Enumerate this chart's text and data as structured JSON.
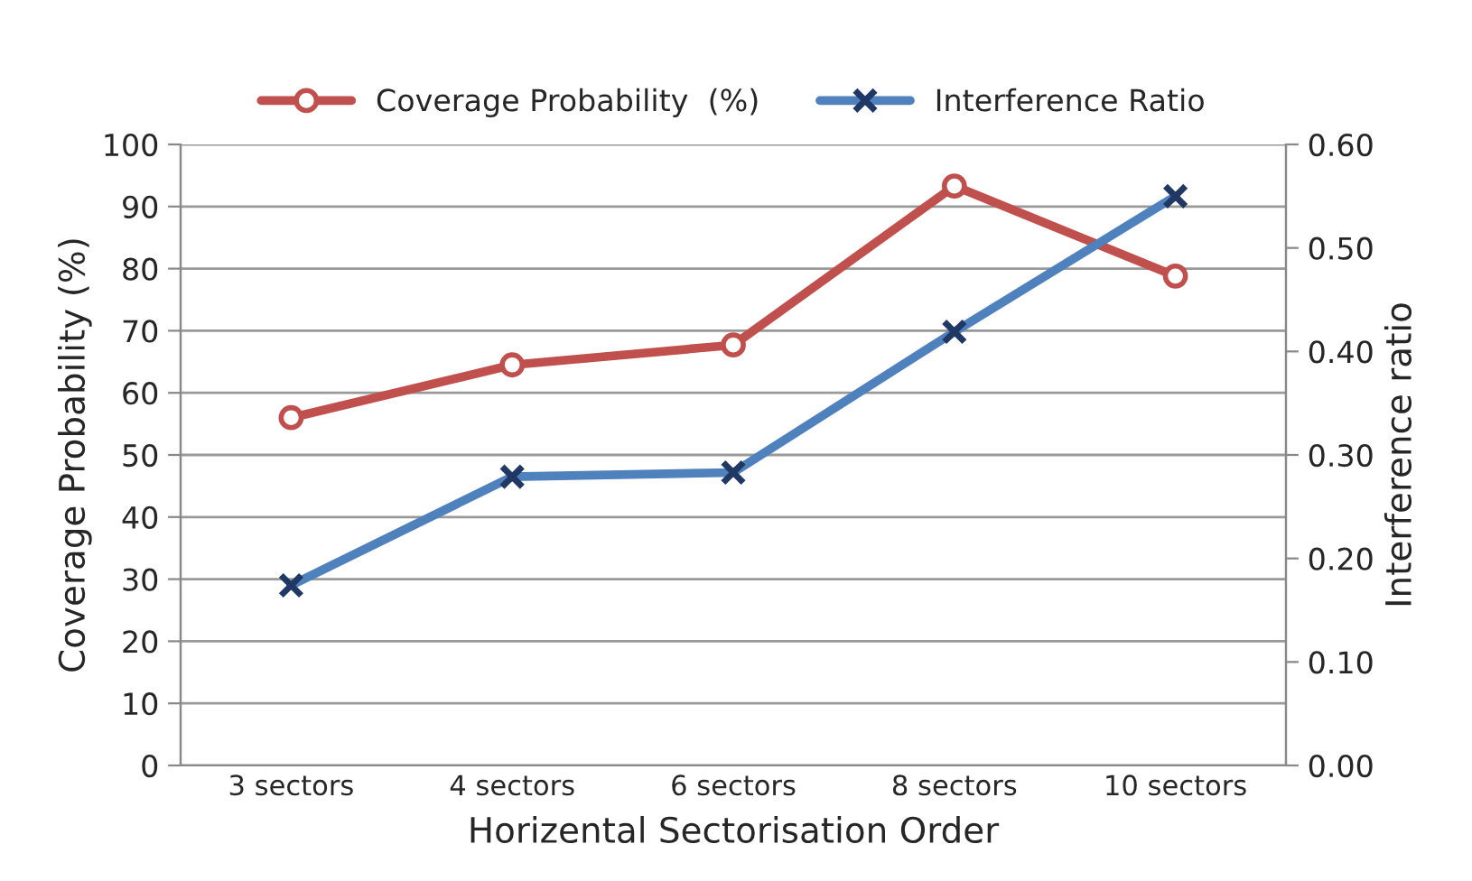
{
  "chart_data": {
    "type": "line",
    "xlabel": "Horizental Sectorisation Order",
    "ylabel": "Coverage Probability (%)",
    "y2label": "Interference ratio",
    "categories": [
      "3 sectors",
      "4 sectors",
      "6 sectors",
      "8 sectors",
      "10 sectors"
    ],
    "series": [
      {
        "name": "Coverage Probability  (%)",
        "color": "#c0504d",
        "marker": "circle",
        "values": [
          56,
          64.5,
          67.7,
          93.3,
          78.8
        ]
      },
      {
        "name": "Interference Ratio",
        "color": "#4f81bd",
        "marker": "cross",
        "axis": "y2",
        "values": [
          0.174,
          0.279,
          0.283,
          0.419,
          0.55
        ]
      }
    ],
    "ylim": [
      0,
      100
    ],
    "yticks": [
      0,
      10,
      20,
      30,
      40,
      50,
      60,
      70,
      80,
      90,
      100
    ],
    "y2lim": [
      0,
      0.6
    ],
    "y2ticks": [
      {
        "value": 0,
        "label": "0.00"
      },
      {
        "value": 0.1,
        "label": "0.10"
      },
      {
        "value": 0.2,
        "label": "0.20"
      },
      {
        "value": 0.3,
        "label": "0.30"
      },
      {
        "value": 0.4,
        "label": "0.40"
      },
      {
        "value": 0.5,
        "label": "0.50"
      },
      {
        "value": 0.6,
        "label": "0.60"
      }
    ],
    "grid": "y",
    "legend": "top",
    "line_style": "solid"
  }
}
